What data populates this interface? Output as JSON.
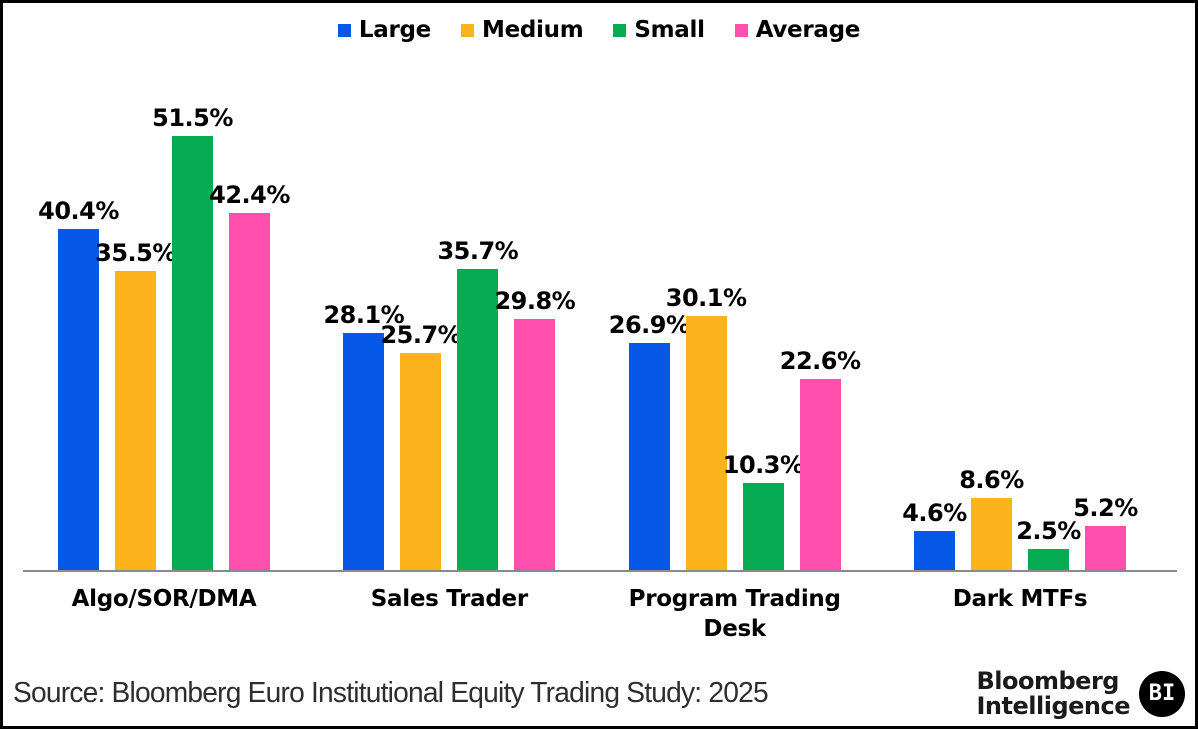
{
  "chart_data": {
    "type": "bar",
    "title": "",
    "categories": [
      "Algo/SOR/DMA",
      "Sales Trader",
      "Program Trading Desk",
      "Dark MTFs"
    ],
    "series": [
      {
        "name": "Large",
        "color": "#0659E6",
        "values": [
          40.4,
          28.1,
          26.9,
          4.6
        ]
      },
      {
        "name": "Medium",
        "color": "#FCB31C",
        "values": [
          35.5,
          25.7,
          30.1,
          8.6
        ]
      },
      {
        "name": "Small",
        "color": "#06AC54",
        "values": [
          51.5,
          35.7,
          10.3,
          2.5
        ]
      },
      {
        "name": "Average",
        "color": "#FF4FAD",
        "values": [
          42.4,
          29.8,
          22.6,
          5.2
        ]
      }
    ],
    "value_suffix": "%",
    "ylim": [
      0,
      55
    ],
    "grid": false,
    "legend_position": "top",
    "axis_line_color": "#8a8a8a"
  },
  "footer": {
    "source_text": "Source: Bloomberg Euro Institutional Equity Trading Study: 2025",
    "logo_line1": "Bloomberg",
    "logo_line2": "Intelligence",
    "bi_badge": "BI"
  }
}
